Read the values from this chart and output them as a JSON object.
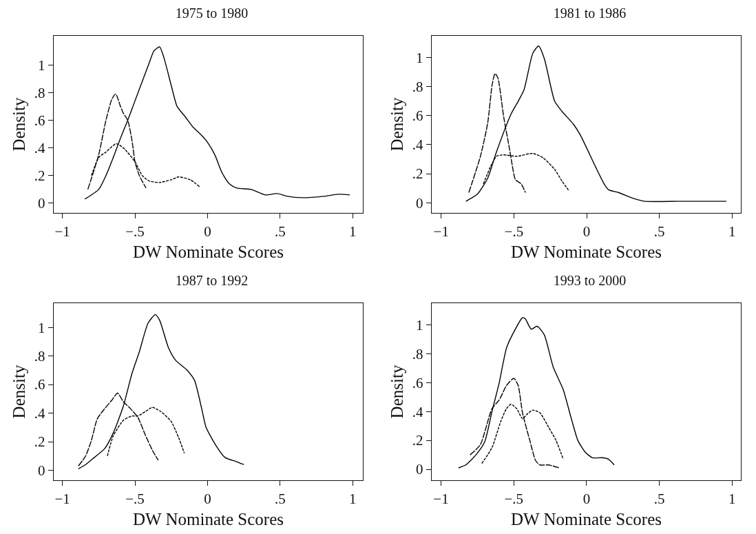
{
  "chart_data": [
    {
      "type": "line",
      "title": "1975 to 1980",
      "xlabel": "DW Nominate Scores",
      "ylabel": "Density",
      "xlim": [
        -1.06,
        1.07
      ],
      "ylim": [
        -0.07,
        1.21
      ],
      "grid": false,
      "marker": "none",
      "xticks": [
        {
          "value": -1,
          "label": "−1"
        },
        {
          "value": -0.5,
          "label": "−.5"
        },
        {
          "value": 0,
          "label": "0"
        },
        {
          "value": 0.5,
          "label": ".5"
        },
        {
          "value": 1,
          "label": "1"
        }
      ],
      "yticks": [
        {
          "value": 0,
          "label": "0"
        },
        {
          "value": 0.2,
          "label": ".2"
        },
        {
          "value": 0.4,
          "label": ".4"
        },
        {
          "value": 0.6,
          "label": ".6"
        },
        {
          "value": 0.8,
          "label": ".8"
        },
        {
          "value": 1,
          "label": "1"
        }
      ],
      "series": [
        {
          "color": "#000000",
          "line_style": "solid",
          "x": [
            -0.845,
            -0.75,
            -0.7,
            -0.65,
            -0.6,
            -0.55,
            -0.5,
            -0.45,
            -0.4,
            -0.37,
            -0.33,
            -0.3,
            -0.25,
            -0.21,
            -0.15,
            -0.1,
            -0.05,
            0,
            0.05,
            0.1,
            0.15,
            0.2,
            0.3,
            0.4,
            0.48,
            0.55,
            0.65,
            0.8,
            0.9,
            0.98
          ],
          "values": [
            0.03,
            0.1,
            0.2,
            0.33,
            0.47,
            0.6,
            0.74,
            0.88,
            1.02,
            1.1,
            1.13,
            1.05,
            0.85,
            0.7,
            0.62,
            0.55,
            0.5,
            0.44,
            0.35,
            0.22,
            0.14,
            0.11,
            0.1,
            0.06,
            0.07,
            0.05,
            0.04,
            0.05,
            0.065,
            0.06
          ]
        },
        {
          "color": "#000000",
          "line_style": "longdash",
          "x": [
            -0.825,
            -0.75,
            -0.7,
            -0.66,
            -0.633,
            -0.6,
            -0.58,
            -0.55,
            -0.52,
            -0.5,
            -0.47,
            -0.424
          ],
          "values": [
            0.1,
            0.35,
            0.6,
            0.75,
            0.79,
            0.7,
            0.65,
            0.6,
            0.45,
            0.3,
            0.2,
            0.11
          ]
        },
        {
          "color": "#000000",
          "line_style": "dashed",
          "x": [
            -0.8,
            -0.75,
            -0.7,
            -0.63,
            -0.58,
            -0.5,
            -0.45,
            -0.4,
            -0.33,
            -0.25,
            -0.2,
            -0.12,
            -0.056
          ],
          "values": [
            0.2,
            0.33,
            0.37,
            0.43,
            0.4,
            0.3,
            0.2,
            0.16,
            0.15,
            0.17,
            0.19,
            0.17,
            0.12
          ]
        }
      ]
    },
    {
      "type": "line",
      "title": "1981 to 1986",
      "xlabel": "DW Nominate Scores",
      "ylabel": "Density",
      "xlim": [
        -1.065,
        1.06
      ],
      "ylim": [
        -0.07,
        1.15
      ],
      "grid": false,
      "marker": "none",
      "xticks": [
        {
          "value": -1,
          "label": "−1"
        },
        {
          "value": -0.5,
          "label": "−.5"
        },
        {
          "value": 0,
          "label": "0"
        },
        {
          "value": 0.5,
          "label": ".5"
        },
        {
          "value": 1,
          "label": "1"
        }
      ],
      "yticks": [
        {
          "value": 0,
          "label": "0"
        },
        {
          "value": 0.2,
          "label": ".2"
        },
        {
          "value": 0.4,
          "label": ".4"
        },
        {
          "value": 0.6,
          "label": ".6"
        },
        {
          "value": 0.8,
          "label": ".8"
        },
        {
          "value": 1,
          "label": "1"
        }
      ],
      "series": [
        {
          "color": "#000000",
          "line_style": "solid",
          "x": [
            -0.83,
            -0.75,
            -0.68,
            -0.62,
            -0.52,
            -0.47,
            -0.43,
            -0.37,
            -0.33,
            -0.29,
            -0.22,
            -0.17,
            -0.09,
            -0.04,
            0.06,
            0.12,
            0.15,
            0.22,
            0.32,
            0.4,
            0.63,
            0.79,
            0.96
          ],
          "values": [
            0.01,
            0.06,
            0.17,
            0.35,
            0.61,
            0.7,
            0.78,
            1.03,
            1.08,
            0.99,
            0.7,
            0.63,
            0.54,
            0.46,
            0.25,
            0.13,
            0.09,
            0.07,
            0.03,
            0.01,
            0.01,
            0.01,
            0.01
          ]
        },
        {
          "color": "#000000",
          "line_style": "longdash",
          "x": [
            -0.81,
            -0.73,
            -0.68,
            -0.65,
            -0.63,
            -0.61,
            -0.57,
            -0.53,
            -0.51,
            -0.49,
            -0.45,
            -0.42
          ],
          "values": [
            0.07,
            0.32,
            0.55,
            0.81,
            0.89,
            0.86,
            0.59,
            0.37,
            0.25,
            0.16,
            0.13,
            0.07
          ]
        },
        {
          "color": "#000000",
          "line_style": "dashed",
          "x": [
            -0.71,
            -0.66,
            -0.62,
            -0.57,
            -0.48,
            -0.37,
            -0.3,
            -0.22,
            -0.17,
            -0.12
          ],
          "values": [
            0.13,
            0.25,
            0.32,
            0.33,
            0.32,
            0.34,
            0.31,
            0.23,
            0.15,
            0.08
          ]
        }
      ]
    },
    {
      "type": "line",
      "title": "1987 to 1992",
      "xlabel": "DW Nominate Scores",
      "ylabel": "Density",
      "xlim": [
        -1.06,
        1.07
      ],
      "ylim": [
        -0.07,
        1.17
      ],
      "grid": false,
      "marker": "none",
      "xticks": [
        {
          "value": -1,
          "label": "−1"
        },
        {
          "value": -0.5,
          "label": "−.5"
        },
        {
          "value": 0,
          "label": "0"
        },
        {
          "value": 0.5,
          "label": ".5"
        },
        {
          "value": 1,
          "label": "1"
        }
      ],
      "yticks": [
        {
          "value": 0,
          "label": "0"
        },
        {
          "value": 0.2,
          "label": ".2"
        },
        {
          "value": 0.4,
          "label": ".4"
        },
        {
          "value": 0.6,
          "label": ".6"
        },
        {
          "value": 0.8,
          "label": ".8"
        },
        {
          "value": 1,
          "label": "1"
        }
      ],
      "series": [
        {
          "color": "#000000",
          "line_style": "solid",
          "x": [
            -0.89,
            -0.84,
            -0.78,
            -0.71,
            -0.65,
            -0.58,
            -0.52,
            -0.47,
            -0.41,
            -0.36,
            -0.33,
            -0.27,
            -0.22,
            -0.14,
            -0.09,
            -0.04,
            -0.01,
            0.06,
            0.12,
            0.2,
            0.25
          ],
          "values": [
            0.01,
            0.04,
            0.09,
            0.15,
            0.26,
            0.45,
            0.68,
            0.83,
            1.03,
            1.09,
            1.05,
            0.86,
            0.77,
            0.7,
            0.63,
            0.43,
            0.3,
            0.17,
            0.09,
            0.06,
            0.04
          ]
        },
        {
          "color": "#000000",
          "line_style": "longdash",
          "x": [
            -0.89,
            -0.84,
            -0.8,
            -0.76,
            -0.71,
            -0.66,
            -0.62,
            -0.58,
            -0.53,
            -0.48,
            -0.43,
            -0.38,
            -0.34
          ],
          "values": [
            0.03,
            0.1,
            0.21,
            0.36,
            0.43,
            0.49,
            0.54,
            0.48,
            0.43,
            0.37,
            0.25,
            0.14,
            0.07
          ]
        },
        {
          "color": "#000000",
          "line_style": "dashed",
          "x": [
            -0.69,
            -0.65,
            -0.58,
            -0.52,
            -0.48,
            -0.43,
            -0.38,
            -0.32,
            -0.25,
            -0.2,
            -0.16
          ],
          "values": [
            0.1,
            0.24,
            0.35,
            0.38,
            0.38,
            0.41,
            0.44,
            0.41,
            0.34,
            0.23,
            0.12
          ]
        }
      ]
    },
    {
      "type": "line",
      "title": "1993 to 2000",
      "xlabel": "DW Nominate Scores",
      "ylabel": "Density",
      "xlim": [
        -1.064,
        1.06
      ],
      "ylim": [
        -0.076,
        1.15
      ],
      "grid": false,
      "marker": "none",
      "xticks": [
        {
          "value": -1,
          "label": "−1"
        },
        {
          "value": -0.5,
          "label": "−.5"
        },
        {
          "value": 0,
          "label": "0"
        },
        {
          "value": 0.5,
          "label": ".5"
        },
        {
          "value": 1,
          "label": "1"
        }
      ],
      "yticks": [
        {
          "value": 0,
          "label": "0"
        },
        {
          "value": 0.2,
          "label": ".2"
        },
        {
          "value": 0.4,
          "label": ".4"
        },
        {
          "value": 0.6,
          "label": ".6"
        },
        {
          "value": 0.8,
          "label": ".8"
        },
        {
          "value": 1,
          "label": "1"
        }
      ],
      "series": [
        {
          "color": "#000000",
          "line_style": "solid",
          "x": [
            -0.88,
            -0.83,
            -0.76,
            -0.7,
            -0.65,
            -0.6,
            -0.55,
            -0.5,
            -0.44,
            -0.42,
            -0.38,
            -0.34,
            -0.29,
            -0.23,
            -0.16,
            -0.11,
            -0.06,
            -0.01,
            0.04,
            0.11,
            0.15,
            0.19
          ],
          "values": [
            0.01,
            0.03,
            0.1,
            0.19,
            0.4,
            0.6,
            0.84,
            0.95,
            1.05,
            1.04,
            0.97,
            0.99,
            0.93,
            0.71,
            0.55,
            0.37,
            0.2,
            0.12,
            0.08,
            0.08,
            0.07,
            0.03
          ]
        },
        {
          "color": "#000000",
          "line_style": "longdash",
          "x": [
            -0.8,
            -0.73,
            -0.65,
            -0.6,
            -0.55,
            -0.5,
            -0.47,
            -0.44,
            -0.39,
            -0.35,
            -0.32,
            -0.26,
            -0.19
          ],
          "values": [
            0.1,
            0.17,
            0.42,
            0.48,
            0.58,
            0.63,
            0.58,
            0.39,
            0.2,
            0.06,
            0.03,
            0.03,
            0.01
          ]
        },
        {
          "color": "#000000",
          "line_style": "dashed",
          "x": [
            -0.72,
            -0.65,
            -0.59,
            -0.55,
            -0.52,
            -0.48,
            -0.44,
            -0.41,
            -0.37,
            -0.32,
            -0.26,
            -0.21,
            -0.16
          ],
          "values": [
            0.04,
            0.15,
            0.33,
            0.42,
            0.45,
            0.42,
            0.35,
            0.38,
            0.41,
            0.39,
            0.29,
            0.2,
            0.07
          ]
        }
      ]
    }
  ]
}
